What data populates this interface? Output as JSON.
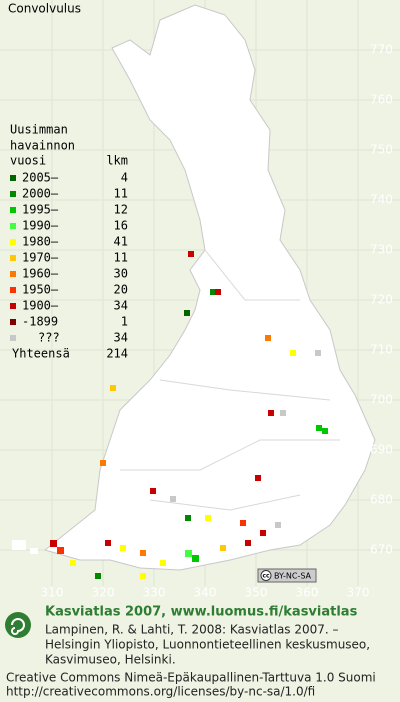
{
  "title": "Convolvulus",
  "legend": {
    "heading": [
      "Uusimman",
      "havainnon"
    ],
    "col_year": "vuosi",
    "col_count": "lkm",
    "items": [
      {
        "label": "2005–",
        "count": 4,
        "color": "#006400"
      },
      {
        "label": "2000–",
        "count": 11,
        "color": "#008800"
      },
      {
        "label": "1995–",
        "count": 12,
        "color": "#00c800"
      },
      {
        "label": "1990–",
        "count": 16,
        "color": "#40ff40"
      },
      {
        "label": "1980–",
        "count": 41,
        "color": "#ffff00"
      },
      {
        "label": "1970–",
        "count": 11,
        "color": "#ffc800"
      },
      {
        "label": "1960–",
        "count": 30,
        "color": "#ff7800"
      },
      {
        "label": "1950–",
        "count": 20,
        "color": "#ff3000"
      },
      {
        "label": "1900–",
        "count": 34,
        "color": "#c80000"
      },
      {
        "label": "-1899",
        "count": 1,
        "color": "#800000"
      },
      {
        "label": "???",
        "count": 34,
        "color": "#c8c8c8"
      }
    ],
    "total_label": "Yhteensä",
    "total": 214
  },
  "northing": [
    770,
    760,
    750,
    740,
    730,
    720,
    710,
    700,
    690,
    680,
    670
  ],
  "easting": [
    310,
    320,
    330,
    340,
    350,
    360,
    370
  ],
  "license_badge": "BY-NC-SA",
  "footer": {
    "site": "Kasviatlas 2007, www.luomus.fi/kasviatlas",
    "citation": [
      "Lampinen, R. & Lahti, T. 2008: Kasviatlas 2007. –",
      "Helsingin Yliopisto, Luonnontieteellinen keskusmuseo,",
      "Kasvimuseo, Helsinki."
    ],
    "license": [
      "Creative Commons Nimeä-Epäkaupallinen-Tarttuva 1.0 Suomi",
      "http://creativecommons.org/licenses/by-nc-sa/1.0/fi"
    ]
  }
}
